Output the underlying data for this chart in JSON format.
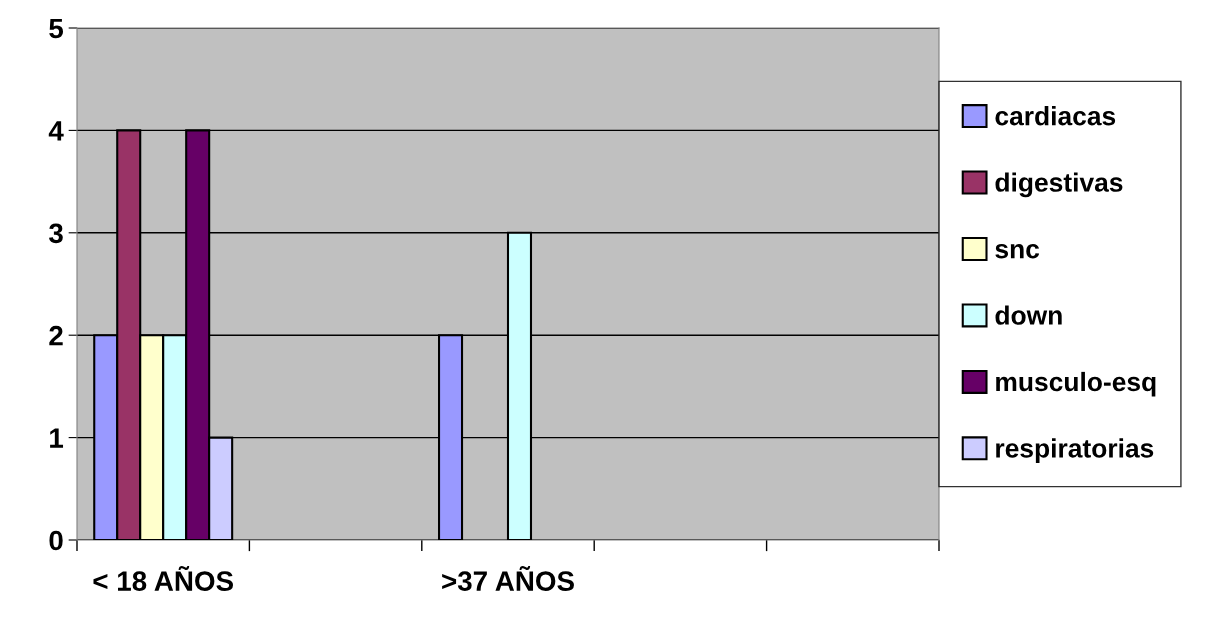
{
  "chart_data": {
    "type": "bar",
    "categories": [
      "< 18 AÑOS",
      null,
      ">37 AÑOS",
      null,
      null
    ],
    "series": [
      {
        "name": "cardiacas",
        "color": "#9999ff",
        "values": [
          2,
          null,
          2,
          null,
          null
        ]
      },
      {
        "name": "digestivas",
        "color": "#993366",
        "values": [
          4,
          null,
          null,
          null,
          null
        ]
      },
      {
        "name": "snc",
        "color": "#ffffcc",
        "values": [
          2,
          null,
          null,
          null,
          null
        ]
      },
      {
        "name": "down",
        "color": "#ccffff",
        "values": [
          2,
          null,
          3,
          null,
          null
        ]
      },
      {
        "name": "musculo-esq",
        "color": "#660066",
        "values": [
          4,
          null,
          null,
          null,
          null
        ]
      },
      {
        "name": "respiratorias",
        "color": "#ccccff",
        "values": [
          1,
          null,
          null,
          null,
          null
        ]
      }
    ],
    "ylim": [
      0,
      5
    ],
    "yticks": [
      0,
      1,
      2,
      3,
      4,
      5
    ],
    "grid": "y",
    "legend": "right"
  }
}
